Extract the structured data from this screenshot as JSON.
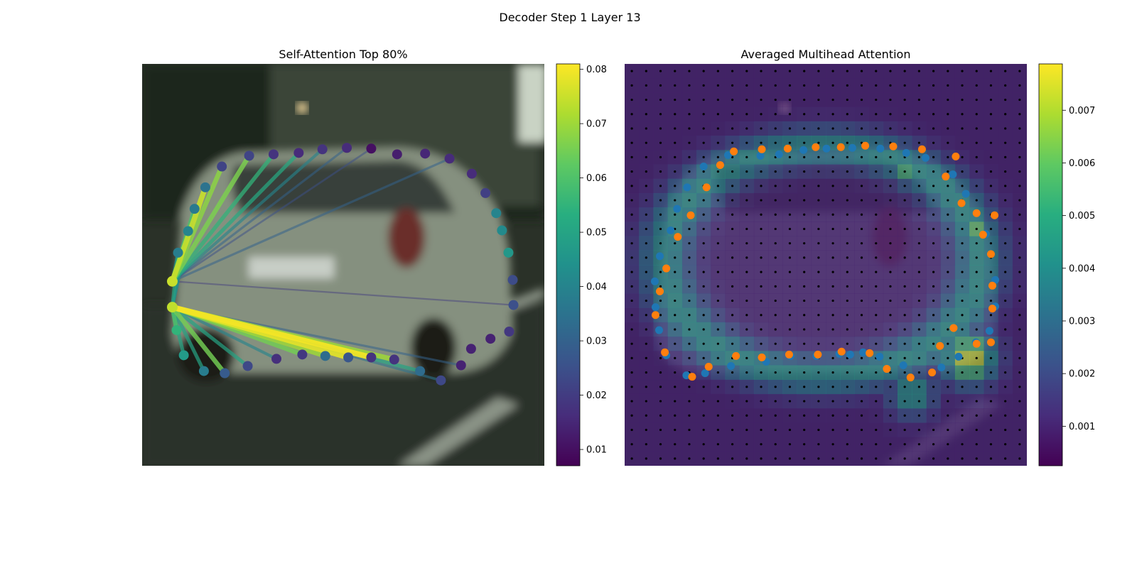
{
  "figure": {
    "suptitle": "Decoder Step 1 Layer 13"
  },
  "chart_data": [
    {
      "type": "scatter",
      "title": "Self-Attention Top 80%",
      "xlim": [
        0,
        56
      ],
      "ylim": [
        56,
        0
      ],
      "background": "blurred street photo of a silver hatchback (rear view)",
      "colormap": "viridis",
      "colorbar": {
        "range": [
          0.007,
          0.081
        ],
        "ticks": [
          0.01,
          0.02,
          0.03,
          0.04,
          0.05,
          0.06,
          0.07,
          0.08
        ]
      },
      "points": [
        {
          "x": 4.2,
          "y": 30.3,
          "v": 0.075
        },
        {
          "x": 4.2,
          "y": 33.9,
          "v": 0.074
        },
        {
          "x": 4.8,
          "y": 37.1,
          "v": 0.055
        },
        {
          "x": 5.8,
          "y": 40.6,
          "v": 0.047
        },
        {
          "x": 8.6,
          "y": 42.8,
          "v": 0.038
        },
        {
          "x": 11.5,
          "y": 43.1,
          "v": 0.028
        },
        {
          "x": 14.7,
          "y": 42.1,
          "v": 0.023
        },
        {
          "x": 18.7,
          "y": 41.1,
          "v": 0.017
        },
        {
          "x": 22.3,
          "y": 40.5,
          "v": 0.019
        },
        {
          "x": 25.5,
          "y": 40.7,
          "v": 0.033
        },
        {
          "x": 28.7,
          "y": 40.9,
          "v": 0.027
        },
        {
          "x": 31.9,
          "y": 40.9,
          "v": 0.018
        },
        {
          "x": 35.1,
          "y": 41.2,
          "v": 0.018
        },
        {
          "x": 38.7,
          "y": 42.8,
          "v": 0.033
        },
        {
          "x": 41.6,
          "y": 44.1,
          "v": 0.023
        },
        {
          "x": 44.4,
          "y": 42.0,
          "v": 0.014
        },
        {
          "x": 45.8,
          "y": 39.7,
          "v": 0.014
        },
        {
          "x": 48.5,
          "y": 38.3,
          "v": 0.014
        },
        {
          "x": 51.1,
          "y": 37.3,
          "v": 0.019
        },
        {
          "x": 51.7,
          "y": 33.6,
          "v": 0.025
        },
        {
          "x": 51.6,
          "y": 30.1,
          "v": 0.024
        },
        {
          "x": 51.0,
          "y": 26.3,
          "v": 0.046
        },
        {
          "x": 50.1,
          "y": 23.2,
          "v": 0.042
        },
        {
          "x": 49.3,
          "y": 20.8,
          "v": 0.04
        },
        {
          "x": 47.8,
          "y": 18.0,
          "v": 0.021
        },
        {
          "x": 45.9,
          "y": 15.3,
          "v": 0.016
        },
        {
          "x": 42.8,
          "y": 13.2,
          "v": 0.016
        },
        {
          "x": 39.4,
          "y": 12.5,
          "v": 0.015
        },
        {
          "x": 35.5,
          "y": 12.6,
          "v": 0.013
        },
        {
          "x": 31.9,
          "y": 11.8,
          "v": 0.01
        },
        {
          "x": 28.5,
          "y": 11.7,
          "v": 0.016
        },
        {
          "x": 25.1,
          "y": 11.9,
          "v": 0.018
        },
        {
          "x": 21.8,
          "y": 12.4,
          "v": 0.016
        },
        {
          "x": 18.3,
          "y": 12.6,
          "v": 0.018
        },
        {
          "x": 14.9,
          "y": 12.8,
          "v": 0.022
        },
        {
          "x": 11.1,
          "y": 14.3,
          "v": 0.022
        },
        {
          "x": 8.8,
          "y": 17.2,
          "v": 0.035
        },
        {
          "x": 7.3,
          "y": 20.2,
          "v": 0.037
        },
        {
          "x": 6.4,
          "y": 23.3,
          "v": 0.04
        },
        {
          "x": 5.0,
          "y": 26.3,
          "v": 0.038
        }
      ],
      "links": [
        {
          "from": 0,
          "to": 36,
          "v": 0.075
        },
        {
          "from": 0,
          "to": 35,
          "v": 0.068
        },
        {
          "from": 0,
          "to": 34,
          "v": 0.066
        },
        {
          "from": 0,
          "to": 33,
          "v": 0.055
        },
        {
          "from": 0,
          "to": 32,
          "v": 0.052
        },
        {
          "from": 0,
          "to": 31,
          "v": 0.04
        },
        {
          "from": 0,
          "to": 30,
          "v": 0.03
        },
        {
          "from": 0,
          "to": 37,
          "v": 0.06
        },
        {
          "from": 0,
          "to": 38,
          "v": 0.05
        },
        {
          "from": 0,
          "to": 39,
          "v": 0.045
        },
        {
          "from": 0,
          "to": 19,
          "v": 0.02
        },
        {
          "from": 0,
          "to": 26,
          "v": 0.03
        },
        {
          "from": 0,
          "to": 29,
          "v": 0.025
        },
        {
          "from": 1,
          "to": 11,
          "v": 0.08
        },
        {
          "from": 1,
          "to": 10,
          "v": 0.078
        },
        {
          "from": 1,
          "to": 12,
          "v": 0.07
        },
        {
          "from": 1,
          "to": 9,
          "v": 0.07
        },
        {
          "from": 1,
          "to": 8,
          "v": 0.065
        },
        {
          "from": 1,
          "to": 13,
          "v": 0.05
        },
        {
          "from": 1,
          "to": 5,
          "v": 0.065
        },
        {
          "from": 1,
          "to": 4,
          "v": 0.05
        },
        {
          "from": 1,
          "to": 6,
          "v": 0.05
        },
        {
          "from": 1,
          "to": 7,
          "v": 0.04
        },
        {
          "from": 1,
          "to": 14,
          "v": 0.035
        },
        {
          "from": 1,
          "to": 2,
          "v": 0.06
        },
        {
          "from": 1,
          "to": 15,
          "v": 0.03
        },
        {
          "from": 1,
          "to": 39,
          "v": 0.05
        },
        {
          "from": 1,
          "to": 38,
          "v": 0.045
        },
        {
          "from": 1,
          "to": 37,
          "v": 0.04
        },
        {
          "from": 1,
          "to": 3,
          "v": 0.05
        }
      ]
    },
    {
      "type": "heatmap",
      "title": "Averaged Multihead Attention",
      "xlim": [
        0,
        56
      ],
      "ylim": [
        56,
        0
      ],
      "background": "same street photo darkened under the attention grid",
      "colormap": "viridis",
      "grid_size": 28,
      "colorbar": {
        "range": [
          0.00025,
          0.00788
        ],
        "ticks": [
          0.001,
          0.002,
          0.003,
          0.004,
          0.005,
          0.006,
          0.007
        ]
      },
      "heat_regions": [
        {
          "kind": "ring",
          "cx": 27.5,
          "cy": 27.5,
          "rx": 22,
          "ry": 16,
          "v": 0.0045
        },
        {
          "kind": "spot",
          "x": 48,
          "y": 41,
          "r": 3.5,
          "v": 0.0078
        },
        {
          "kind": "spot",
          "x": 49,
          "y": 23,
          "r": 2,
          "v": 0.006
        },
        {
          "kind": "spot",
          "x": 39,
          "y": 15,
          "r": 2,
          "v": 0.0055
        },
        {
          "kind": "spot",
          "x": 40,
          "y": 46,
          "r": 3,
          "v": 0.0052
        }
      ],
      "reference_points": [
        {
          "x": 18.9,
          "y": 12.8
        },
        {
          "x": 21.5,
          "y": 12.6
        },
        {
          "x": 24.9,
          "y": 12.0
        },
        {
          "x": 28.1,
          "y": 11.8
        },
        {
          "x": 31.7,
          "y": 11.7
        },
        {
          "x": 35.6,
          "y": 11.8
        },
        {
          "x": 39.2,
          "y": 12.4
        },
        {
          "x": 41.9,
          "y": 13.1
        },
        {
          "x": 45.7,
          "y": 15.4
        },
        {
          "x": 47.5,
          "y": 18.1
        },
        {
          "x": 50.3,
          "y": 23.7
        },
        {
          "x": 51.6,
          "y": 30.1
        },
        {
          "x": 51.6,
          "y": 33.8
        },
        {
          "x": 50.8,
          "y": 37.2
        },
        {
          "x": 48.9,
          "y": 38.8
        },
        {
          "x": 46.5,
          "y": 40.8
        },
        {
          "x": 44.1,
          "y": 42.3
        },
        {
          "x": 38.8,
          "y": 42.0
        },
        {
          "x": 35.5,
          "y": 40.8
        },
        {
          "x": 33.2,
          "y": 40.2
        },
        {
          "x": 31.4,
          "y": 40.5
        },
        {
          "x": 29.9,
          "y": 40.4
        },
        {
          "x": 26.7,
          "y": 40.7
        },
        {
          "x": 23.1,
          "y": 40.7
        },
        {
          "x": 19.7,
          "y": 41.5
        },
        {
          "x": 14.8,
          "y": 42.1
        },
        {
          "x": 11.2,
          "y": 43.1
        },
        {
          "x": 8.6,
          "y": 43.4
        },
        {
          "x": 5.8,
          "y": 40.6
        },
        {
          "x": 4.8,
          "y": 37.1
        },
        {
          "x": 4.3,
          "y": 33.9
        },
        {
          "x": 4.2,
          "y": 30.3
        },
        {
          "x": 4.9,
          "y": 26.8
        },
        {
          "x": 6.4,
          "y": 23.2
        },
        {
          "x": 7.3,
          "y": 20.2
        },
        {
          "x": 8.7,
          "y": 17.2
        },
        {
          "x": 11.0,
          "y": 14.3
        },
        {
          "x": 14.4,
          "y": 12.7
        }
      ],
      "predicted_points": [
        {
          "x": 19.1,
          "y": 11.9
        },
        {
          "x": 22.7,
          "y": 11.8
        },
        {
          "x": 26.6,
          "y": 11.6
        },
        {
          "x": 30.1,
          "y": 11.6
        },
        {
          "x": 33.5,
          "y": 11.4
        },
        {
          "x": 37.4,
          "y": 11.5
        },
        {
          "x": 41.4,
          "y": 11.9
        },
        {
          "x": 46.1,
          "y": 12.9
        },
        {
          "x": 44.7,
          "y": 15.7
        },
        {
          "x": 46.9,
          "y": 19.4
        },
        {
          "x": 49.0,
          "y": 20.8
        },
        {
          "x": 51.5,
          "y": 21.1
        },
        {
          "x": 49.9,
          "y": 23.8
        },
        {
          "x": 51.0,
          "y": 26.5
        },
        {
          "x": 51.2,
          "y": 30.9
        },
        {
          "x": 51.2,
          "y": 34.1
        },
        {
          "x": 51.0,
          "y": 38.8
        },
        {
          "x": 49.0,
          "y": 39.0
        },
        {
          "x": 45.8,
          "y": 36.8
        },
        {
          "x": 43.9,
          "y": 39.3
        },
        {
          "x": 42.8,
          "y": 43.0
        },
        {
          "x": 39.8,
          "y": 43.7
        },
        {
          "x": 36.5,
          "y": 42.5
        },
        {
          "x": 34.1,
          "y": 40.3
        },
        {
          "x": 30.2,
          "y": 40.1
        },
        {
          "x": 26.9,
          "y": 40.5
        },
        {
          "x": 22.9,
          "y": 40.5
        },
        {
          "x": 19.1,
          "y": 40.9
        },
        {
          "x": 15.5,
          "y": 40.7
        },
        {
          "x": 11.7,
          "y": 42.2
        },
        {
          "x": 9.4,
          "y": 43.6
        },
        {
          "x": 5.6,
          "y": 40.2
        },
        {
          "x": 4.3,
          "y": 35.0
        },
        {
          "x": 4.9,
          "y": 31.7
        },
        {
          "x": 5.8,
          "y": 28.5
        },
        {
          "x": 7.4,
          "y": 24.1
        },
        {
          "x": 9.2,
          "y": 21.1
        },
        {
          "x": 11.4,
          "y": 17.2
        },
        {
          "x": 13.3,
          "y": 14.1
        },
        {
          "x": 15.2,
          "y": 12.2
        }
      ]
    }
  ]
}
